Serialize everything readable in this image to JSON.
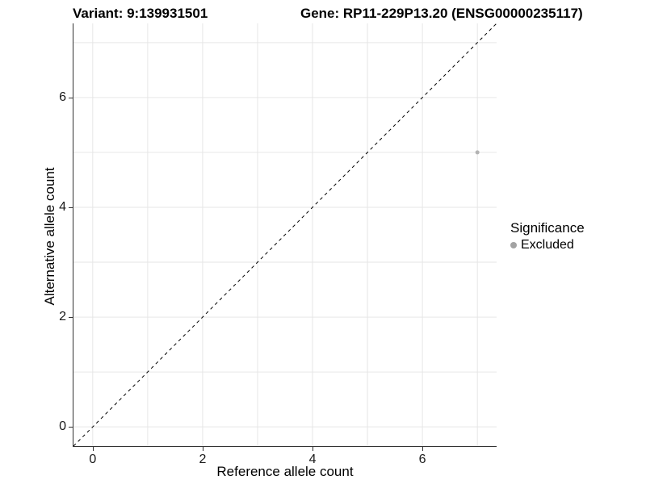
{
  "chart_data": {
    "type": "scatter",
    "title_variant": "Variant: 9:139931501",
    "title_gene": "Gene: RP11-229P13.20 (ENSG00000235117)",
    "xlabel": "Reference allele count",
    "ylabel": "Alternative allele count",
    "xlim": [
      -0.35,
      7.35
    ],
    "ylim": [
      -0.35,
      7.35
    ],
    "x_ticks": [
      0,
      2,
      4,
      6
    ],
    "y_ticks": [
      0,
      2,
      4,
      6
    ],
    "x_grid": [
      0,
      1,
      2,
      3,
      4,
      5,
      6,
      7
    ],
    "y_grid": [
      0,
      1,
      2,
      3,
      4,
      5,
      6,
      7
    ],
    "grid": true,
    "points": [
      {
        "x": 7,
        "y": 5,
        "significance": "Excluded",
        "color": "#b3b3b3",
        "radius": 2.5
      }
    ],
    "reference_line": {
      "type": "identity",
      "slope": 1,
      "intercept": 0,
      "style": "dashed",
      "color": "#000000"
    },
    "legend": {
      "position": "right",
      "title": "Significance",
      "entries": [
        {
          "label": "Excluded",
          "color": "#a3a3a3"
        }
      ]
    },
    "colors": {
      "background": "#ffffff",
      "grid": "#e6e6e6",
      "axis_line": "#333333",
      "tick_text": "#1a1a1a",
      "title_text": "#000000"
    }
  }
}
